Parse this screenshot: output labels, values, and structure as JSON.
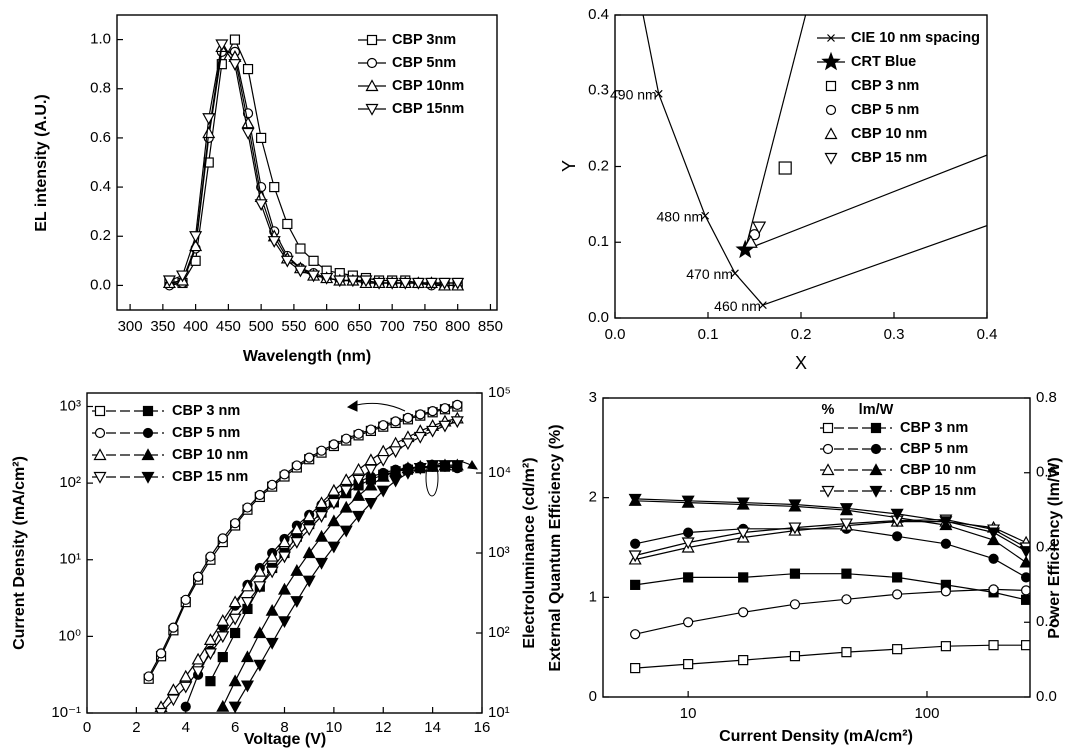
{
  "chart_data": [
    {
      "type": "line",
      "color": "#000000",
      "legend": "upper right",
      "x_label": "Wavelength (nm)",
      "y_label": "EL intensity (A.U.)",
      "x": [
        360,
        380,
        400,
        420,
        440,
        460,
        480,
        500,
        520,
        540,
        560,
        580,
        600,
        620,
        640,
        660,
        680,
        700,
        720,
        740,
        760,
        780,
        800
      ],
      "xlim": [
        280,
        860
      ],
      "xticks": [
        300,
        350,
        400,
        450,
        500,
        550,
        600,
        650,
        700,
        750,
        800,
        850
      ],
      "ylim": [
        -0.1,
        1.1
      ],
      "yticks": [
        {
          "value": 0,
          "label": "0.0"
        },
        {
          "value": 0.2,
          "label": "0.2"
        },
        {
          "value": 0.4,
          "label": "0.4"
        },
        {
          "value": 0.6,
          "label": "0.6"
        },
        {
          "value": 0.8,
          "label": "0.8"
        },
        {
          "value": 1,
          "label": "1.0"
        }
      ],
      "series": [
        {
          "name": "CBP 3nm",
          "marker": "square",
          "values": [
            0.01,
            0.01,
            0.1,
            0.5,
            0.9,
            1.0,
            0.88,
            0.6,
            0.4,
            0.25,
            0.15,
            0.1,
            0.06,
            0.05,
            0.04,
            0.03,
            0.02,
            0.02,
            0.02,
            0.01,
            0.01,
            0.01,
            0.01
          ]
        },
        {
          "name": "CBP 5nm",
          "marker": "circle",
          "values": [
            0.0,
            0.01,
            0.15,
            0.6,
            0.95,
            0.95,
            0.7,
            0.4,
            0.22,
            0.12,
            0.07,
            0.05,
            0.03,
            0.02,
            0.02,
            0.01,
            0.01,
            0.01,
            0.01,
            0.01,
            0.0,
            0.0,
            0.0
          ]
        },
        {
          "name": "CBP 10nm",
          "marker": "triangle",
          "values": [
            0.01,
            0.02,
            0.16,
            0.62,
            0.97,
            0.93,
            0.66,
            0.36,
            0.2,
            0.11,
            0.07,
            0.04,
            0.03,
            0.02,
            0.02,
            0.01,
            0.01,
            0.01,
            0.01,
            0.01,
            0.01,
            0.0,
            0.0
          ]
        },
        {
          "name": "CBP 15nm",
          "marker": "triangle-down",
          "values": [
            0.02,
            0.04,
            0.2,
            0.68,
            0.98,
            0.9,
            0.62,
            0.33,
            0.18,
            0.1,
            0.06,
            0.04,
            0.03,
            0.02,
            0.02,
            0.02,
            0.01,
            0.01,
            0.01,
            0.01,
            0.01,
            0.01,
            0.01
          ]
        }
      ]
    },
    {
      "type": "cie",
      "color": "#000000",
      "legend": "upper right",
      "x_label": "X",
      "y_label": "Y",
      "xlim": [
        0,
        0.4
      ],
      "ylim": [
        0,
        0.4
      ],
      "xticks": [
        {
          "value": 0,
          "label": "0.0"
        },
        {
          "value": 0.1,
          "label": "0.1"
        },
        {
          "value": 0.2,
          "label": "0.2"
        },
        {
          "value": 0.3,
          "label": "0.3"
        },
        {
          "value": 0.4,
          "label": "0.4"
        }
      ],
      "yticks": [
        {
          "value": 0,
          "label": "0.0"
        },
        {
          "value": 0.1,
          "label": "0.1"
        },
        {
          "value": 0.2,
          "label": "0.2"
        },
        {
          "value": 0.3,
          "label": "0.3"
        },
        {
          "value": 0.4,
          "label": "0.4"
        }
      ],
      "locus": {
        "name": "CIE 10 nm spacing",
        "marker": "x",
        "x": [
          0.008,
          0.047,
          0.097,
          0.129,
          0.159
        ],
        "y": [
          0.538,
          0.296,
          0.135,
          0.059,
          0.017
        ],
        "point_labels": [
          null,
          "490 nm",
          "480 nm",
          "470 nm",
          "460 nm"
        ]
      },
      "gamut_lines": [
        {
          "x": [
            0.159,
            0.4
          ],
          "y": [
            0.017,
            0.122
          ]
        },
        {
          "x": [
            0.14,
            0.4
          ],
          "y": [
            0.09,
            0.215
          ]
        },
        {
          "x": [
            0.14,
            0.205
          ],
          "y": [
            0.09,
            0.4
          ]
        }
      ],
      "points": [
        {
          "name": "CRT Blue",
          "marker": "star",
          "x": 0.14,
          "y": 0.09
        },
        {
          "name": "CBP 3 nm",
          "marker": "square",
          "x": 0.183,
          "y": 0.198
        },
        {
          "name": "CBP 5 nm",
          "marker": "circle",
          "x": 0.15,
          "y": 0.11
        },
        {
          "name": "CBP 10 nm",
          "marker": "triangle",
          "x": 0.146,
          "y": 0.1
        },
        {
          "name": "CBP 15 nm",
          "marker": "triangle-down",
          "x": 0.155,
          "y": 0.12
        }
      ]
    },
    {
      "type": "dual",
      "color": "#000000",
      "legend": "upper left",
      "x_label": "Voltage (V)",
      "y_label": "Current Density (mA/cm²)",
      "y2_label": "Electroluminance (cd/m²)",
      "x": [
        2.5,
        3,
        3.5,
        4,
        4.5,
        5,
        5.5,
        6,
        6.5,
        7,
        7.5,
        8,
        8.5,
        9,
        9.5,
        10,
        10.5,
        11,
        11.5,
        12,
        12.5,
        13,
        13.5,
        14,
        14.5,
        15
      ],
      "xlim": [
        0,
        16
      ],
      "xticks": [
        0,
        2,
        4,
        6,
        8,
        10,
        12,
        14,
        16
      ],
      "log_y": true,
      "ylim": [
        0.1,
        1500
      ],
      "yticks": [
        {
          "value": 0.1,
          "label": "10⁻¹"
        },
        {
          "value": 1,
          "label": "10⁰"
        },
        {
          "value": 10,
          "label": "10¹"
        },
        {
          "value": 100,
          "label": "10²"
        },
        {
          "value": 1000,
          "label": "10³"
        }
      ],
      "log_y2": true,
      "y2lim": [
        10,
        100000
      ],
      "y2ticks": [
        {
          "value": 10,
          "label": "10¹"
        },
        {
          "value": 100,
          "label": "10²"
        },
        {
          "value": 1000,
          "label": "10³"
        },
        {
          "value": 10000,
          "label": "10⁴"
        },
        {
          "value": 100000,
          "label": "10⁵"
        }
      ],
      "series": [
        {
          "name": "CBP 3 nm",
          "marker": "square",
          "values": [
            0.28,
            0.55,
            1.2,
            2.8,
            5.5,
            10,
            17,
            28,
            45,
            66,
            90,
            122,
            160,
            205,
            250,
            305,
            360,
            420,
            480,
            545,
            610,
            680,
            760,
            840,
            920,
            1000
          ],
          "y2_values": [
            null,
            null,
            null,
            null,
            null,
            25,
            50,
            100,
            200,
            380,
            650,
            1000,
            1600,
            2300,
            3200,
            4300,
            5600,
            7000,
            8300,
            9500,
            10500,
            11000,
            11500,
            12000,
            12000,
            12000
          ]
        },
        {
          "name": "CBP 5 nm",
          "marker": "circle",
          "values": [
            0.3,
            0.6,
            1.3,
            3,
            6,
            11,
            19,
            30,
            48,
            70,
            95,
            130,
            170,
            215,
            265,
            320,
            380,
            440,
            500,
            570,
            640,
            710,
            790,
            870,
            950,
            1050
          ],
          "y2_values": [
            null,
            null,
            null,
            12,
            30,
            60,
            120,
            220,
            400,
            650,
            1000,
            1500,
            2200,
            3000,
            4000,
            5200,
            6500,
            7800,
            9000,
            10000,
            11000,
            11500,
            12000,
            12000,
            12000,
            11500
          ]
        },
        {
          "name": "CBP 10 nm",
          "marker": "triangle",
          "values": [
            null,
            0.12,
            0.2,
            0.3,
            0.5,
            0.9,
            1.6,
            2.8,
            4.5,
            7,
            11,
            17,
            25,
            37,
            55,
            80,
            110,
            150,
            200,
            260,
            330,
            400,
            480,
            560,
            640,
            700
          ],
          "y2_values": [
            null,
            null,
            null,
            null,
            null,
            null,
            12,
            25,
            50,
            100,
            190,
            350,
            600,
            1000,
            1600,
            2500,
            3700,
            5200,
            7000,
            9000,
            10500,
            11500,
            12000,
            12000,
            12500,
            12500
          ]
        },
        {
          "name": "CBP 15 nm",
          "marker": "triangle-down",
          "values": [
            null,
            0.1,
            0.15,
            0.22,
            0.35,
            0.6,
            1,
            1.7,
            2.8,
            4.5,
            7,
            11,
            17,
            25,
            37,
            55,
            80,
            110,
            150,
            200,
            260,
            330,
            400,
            480,
            560,
            640
          ],
          "y2_values": [
            null,
            null,
            null,
            null,
            null,
            null,
            null,
            12,
            22,
            40,
            75,
            140,
            250,
            450,
            750,
            1200,
            1900,
            2900,
            4200,
            6000,
            8000,
            10000,
            11500,
            12500,
            12500,
            12500
          ]
        }
      ]
    },
    {
      "type": "dual",
      "color": "#000000",
      "legend": "upper right",
      "legend_header": [
        "%",
        "lm/W"
      ],
      "x_label": "Current Density (mA/cm²)",
      "y_label": "External Quantum Efficiency (%)",
      "y2_label": "Power Efficiency (lm/W)",
      "x": [
        6,
        10,
        17,
        28,
        46,
        75,
        120,
        190,
        260
      ],
      "log_x": true,
      "xlim": [
        4.4,
        270
      ],
      "xticks": [
        10,
        100
      ],
      "ylim": [
        0,
        3
      ],
      "yticks": [
        0,
        1,
        2,
        3
      ],
      "y2lim": [
        0,
        0.8
      ],
      "y2ticks": [
        {
          "value": 0,
          "label": "0.0"
        },
        {
          "value": 0.2,
          "label": "0.2"
        },
        {
          "value": 0.4,
          "label": "0.4"
        },
        {
          "value": 0.6,
          "label": "0.6"
        },
        {
          "value": 0.8,
          "label": "0.8"
        }
      ],
      "series": [
        {
          "name": "CBP 3 nm",
          "marker": "square",
          "values": [
            0.29,
            0.33,
            0.37,
            0.41,
            0.45,
            0.48,
            0.51,
            0.52,
            0.52
          ],
          "y2_values": [
            0.3,
            0.32,
            0.32,
            0.33,
            0.33,
            0.32,
            0.3,
            0.28,
            0.26
          ]
        },
        {
          "name": "CBP 5 nm",
          "marker": "circle",
          "values": [
            0.63,
            0.75,
            0.85,
            0.93,
            0.98,
            1.03,
            1.06,
            1.08,
            1.07
          ],
          "y2_values": [
            0.41,
            0.44,
            0.45,
            0.45,
            0.45,
            0.43,
            0.41,
            0.37,
            0.32
          ]
        },
        {
          "name": "CBP 10 nm",
          "marker": "triangle",
          "values": [
            1.38,
            1.5,
            1.6,
            1.67,
            1.72,
            1.76,
            1.76,
            1.7,
            1.55
          ],
          "y2_values": [
            0.525,
            0.52,
            0.515,
            0.51,
            0.5,
            0.48,
            0.46,
            0.42,
            0.36
          ]
        },
        {
          "name": "CBP 15 nm",
          "marker": "triangle-down",
          "values": [
            1.42,
            1.55,
            1.65,
            1.7,
            1.74,
            1.77,
            1.78,
            1.68,
            1.5
          ],
          "y2_values": [
            0.53,
            0.525,
            0.52,
            0.515,
            0.505,
            0.49,
            0.47,
            0.44,
            0.39
          ]
        }
      ]
    }
  ]
}
